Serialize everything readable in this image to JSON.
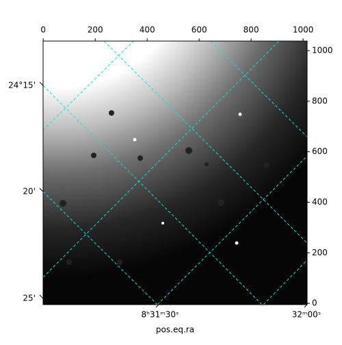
{
  "chart_data": {
    "type": "image",
    "xlabel": "pos.eq.ra",
    "xlim": [
      -0.5,
      1015.5
    ],
    "xticks": [
      0,
      200,
      400,
      600,
      800,
      1000
    ],
    "ylim": [
      -5,
      1038
    ],
    "yticks": [
      0,
      200,
      400,
      600,
      800,
      1000
    ],
    "left_tick_labels": [
      "24°15'",
      "20'",
      "25'"
    ],
    "bottom_tick_labels": [
      "8ʰ31ᵐ30ˢ",
      "32ᵐ00ˢ"
    ],
    "grid_color": "#00e5e5"
  }
}
